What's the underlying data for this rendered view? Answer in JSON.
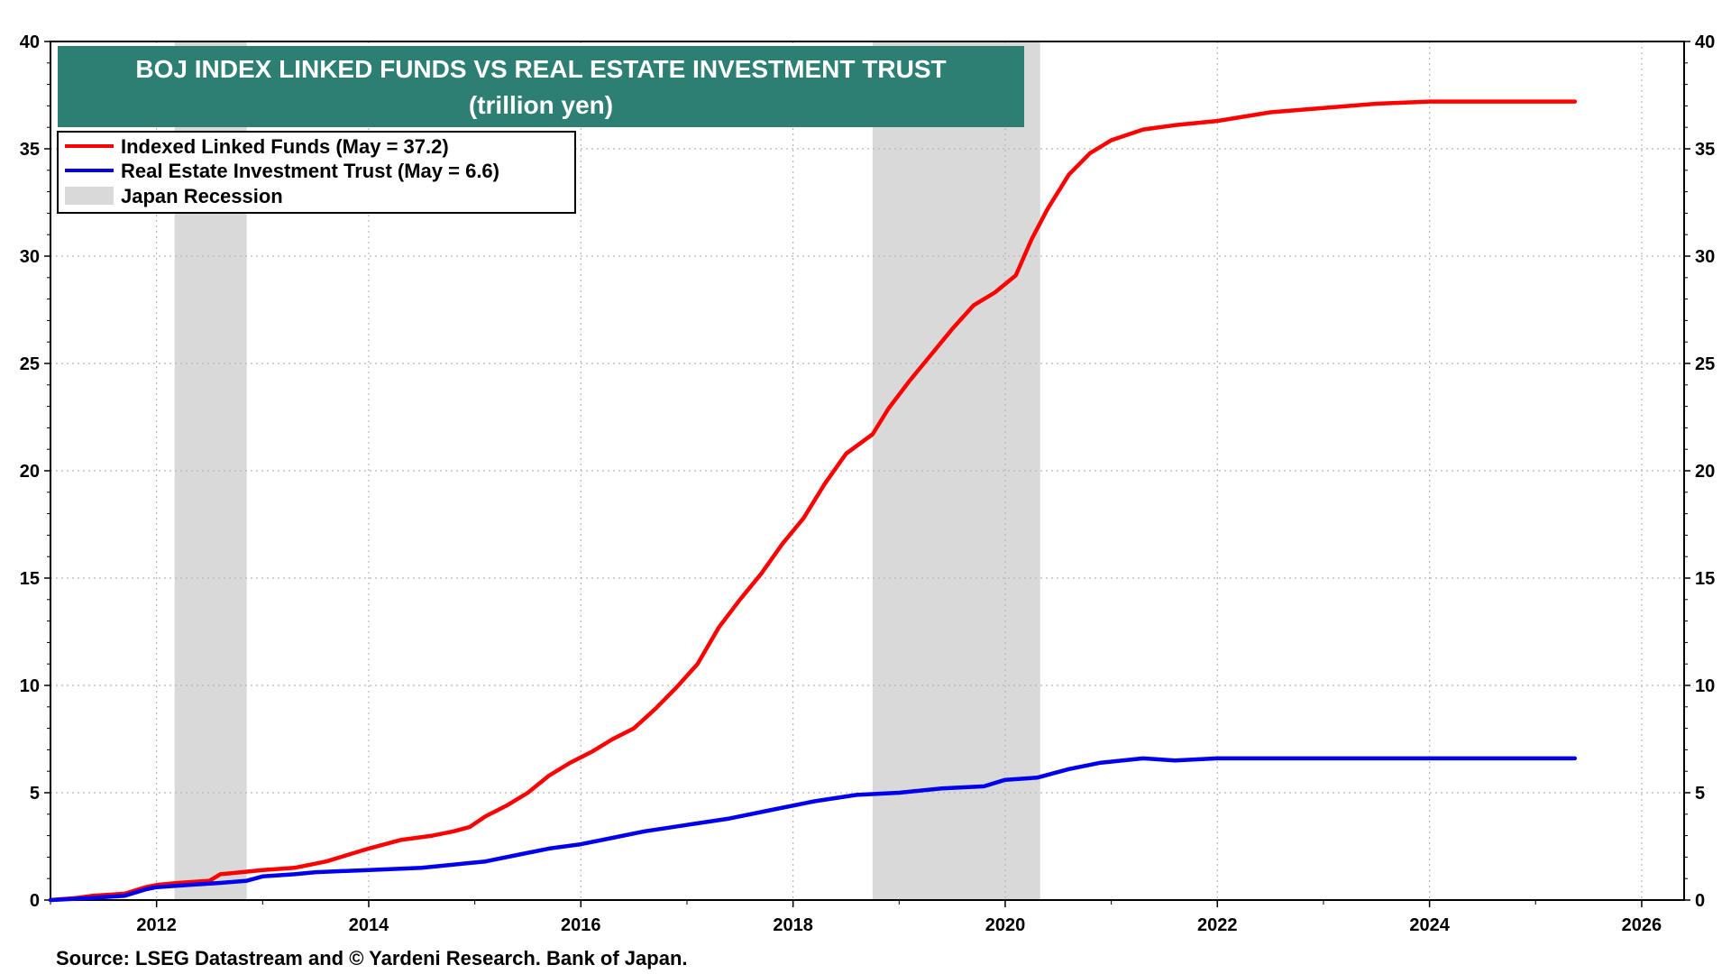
{
  "chart_data": {
    "type": "line",
    "title": "BOJ INDEX LINKED FUNDS VS REAL ESTATE INVESTMENT TRUST",
    "subtitle": "(trillion yen)",
    "source": "Source: LSEG Datastream and © Yardeni Research. Bank of Japan.",
    "xlim": [
      2011.0,
      2026.4
    ],
    "ylim": [
      0,
      40
    ],
    "x_ticks": [
      "2012",
      "2014",
      "2016",
      "2018",
      "2020",
      "2022",
      "2024",
      "2026"
    ],
    "y_ticks": [
      "0",
      "5",
      "10",
      "15",
      "20",
      "25",
      "30",
      "35",
      "40"
    ],
    "grid": true,
    "legend_position": "top-left",
    "recession_legend": "Japan Recession",
    "recessions": [
      [
        2012.17,
        2012.85
      ],
      [
        2018.75,
        2020.33
      ]
    ],
    "series": [
      {
        "name": "Indexed Linked Funds (May = 37.2)",
        "color": "#ff0000",
        "points": [
          [
            2011.0,
            0.0
          ],
          [
            2011.25,
            0.1
          ],
          [
            2011.4,
            0.2
          ],
          [
            2011.7,
            0.3
          ],
          [
            2011.9,
            0.6
          ],
          [
            2012.0,
            0.7
          ],
          [
            2012.2,
            0.8
          ],
          [
            2012.5,
            0.9
          ],
          [
            2012.6,
            1.2
          ],
          [
            2012.8,
            1.3
          ],
          [
            2013.0,
            1.4
          ],
          [
            2013.3,
            1.5
          ],
          [
            2013.6,
            1.8
          ],
          [
            2013.8,
            2.1
          ],
          [
            2014.0,
            2.4
          ],
          [
            2014.3,
            2.8
          ],
          [
            2014.6,
            3.0
          ],
          [
            2014.8,
            3.2
          ],
          [
            2014.95,
            3.4
          ],
          [
            2015.1,
            3.9
          ],
          [
            2015.3,
            4.4
          ],
          [
            2015.5,
            5.0
          ],
          [
            2015.7,
            5.8
          ],
          [
            2015.9,
            6.4
          ],
          [
            2016.1,
            6.9
          ],
          [
            2016.3,
            7.5
          ],
          [
            2016.5,
            8.0
          ],
          [
            2016.7,
            8.9
          ],
          [
            2016.9,
            9.9
          ],
          [
            2017.1,
            11.0
          ],
          [
            2017.3,
            12.7
          ],
          [
            2017.5,
            14.0
          ],
          [
            2017.7,
            15.2
          ],
          [
            2017.9,
            16.6
          ],
          [
            2018.1,
            17.8
          ],
          [
            2018.3,
            19.4
          ],
          [
            2018.5,
            20.8
          ],
          [
            2018.75,
            21.7
          ],
          [
            2018.9,
            22.9
          ],
          [
            2019.1,
            24.2
          ],
          [
            2019.3,
            25.4
          ],
          [
            2019.5,
            26.6
          ],
          [
            2019.7,
            27.7
          ],
          [
            2019.9,
            28.3
          ],
          [
            2020.1,
            29.1
          ],
          [
            2020.25,
            30.8
          ],
          [
            2020.4,
            32.2
          ],
          [
            2020.6,
            33.8
          ],
          [
            2020.8,
            34.8
          ],
          [
            2021.0,
            35.4
          ],
          [
            2021.3,
            35.9
          ],
          [
            2021.6,
            36.1
          ],
          [
            2022.0,
            36.3
          ],
          [
            2022.5,
            36.7
          ],
          [
            2023.0,
            36.9
          ],
          [
            2023.5,
            37.1
          ],
          [
            2024.0,
            37.2
          ],
          [
            2025.37,
            37.2
          ]
        ]
      },
      {
        "name": "Real Estate Investment Trust (May = 6.6)",
        "color": "#0000ee",
        "points": [
          [
            2011.0,
            0.0
          ],
          [
            2011.4,
            0.1
          ],
          [
            2011.7,
            0.2
          ],
          [
            2011.9,
            0.5
          ],
          [
            2012.0,
            0.6
          ],
          [
            2012.3,
            0.7
          ],
          [
            2012.6,
            0.8
          ],
          [
            2012.85,
            0.9
          ],
          [
            2013.0,
            1.1
          ],
          [
            2013.3,
            1.2
          ],
          [
            2013.5,
            1.3
          ],
          [
            2014.0,
            1.4
          ],
          [
            2014.5,
            1.5
          ],
          [
            2014.9,
            1.7
          ],
          [
            2015.1,
            1.8
          ],
          [
            2015.4,
            2.1
          ],
          [
            2015.7,
            2.4
          ],
          [
            2016.0,
            2.6
          ],
          [
            2016.3,
            2.9
          ],
          [
            2016.6,
            3.2
          ],
          [
            2017.0,
            3.5
          ],
          [
            2017.4,
            3.8
          ],
          [
            2017.8,
            4.2
          ],
          [
            2018.2,
            4.6
          ],
          [
            2018.6,
            4.9
          ],
          [
            2019.0,
            5.0
          ],
          [
            2019.4,
            5.2
          ],
          [
            2019.8,
            5.3
          ],
          [
            2020.0,
            5.6
          ],
          [
            2020.3,
            5.7
          ],
          [
            2020.6,
            6.1
          ],
          [
            2020.9,
            6.4
          ],
          [
            2021.3,
            6.6
          ],
          [
            2021.6,
            6.5
          ],
          [
            2022.0,
            6.6
          ],
          [
            2025.37,
            6.6
          ]
        ]
      }
    ]
  }
}
